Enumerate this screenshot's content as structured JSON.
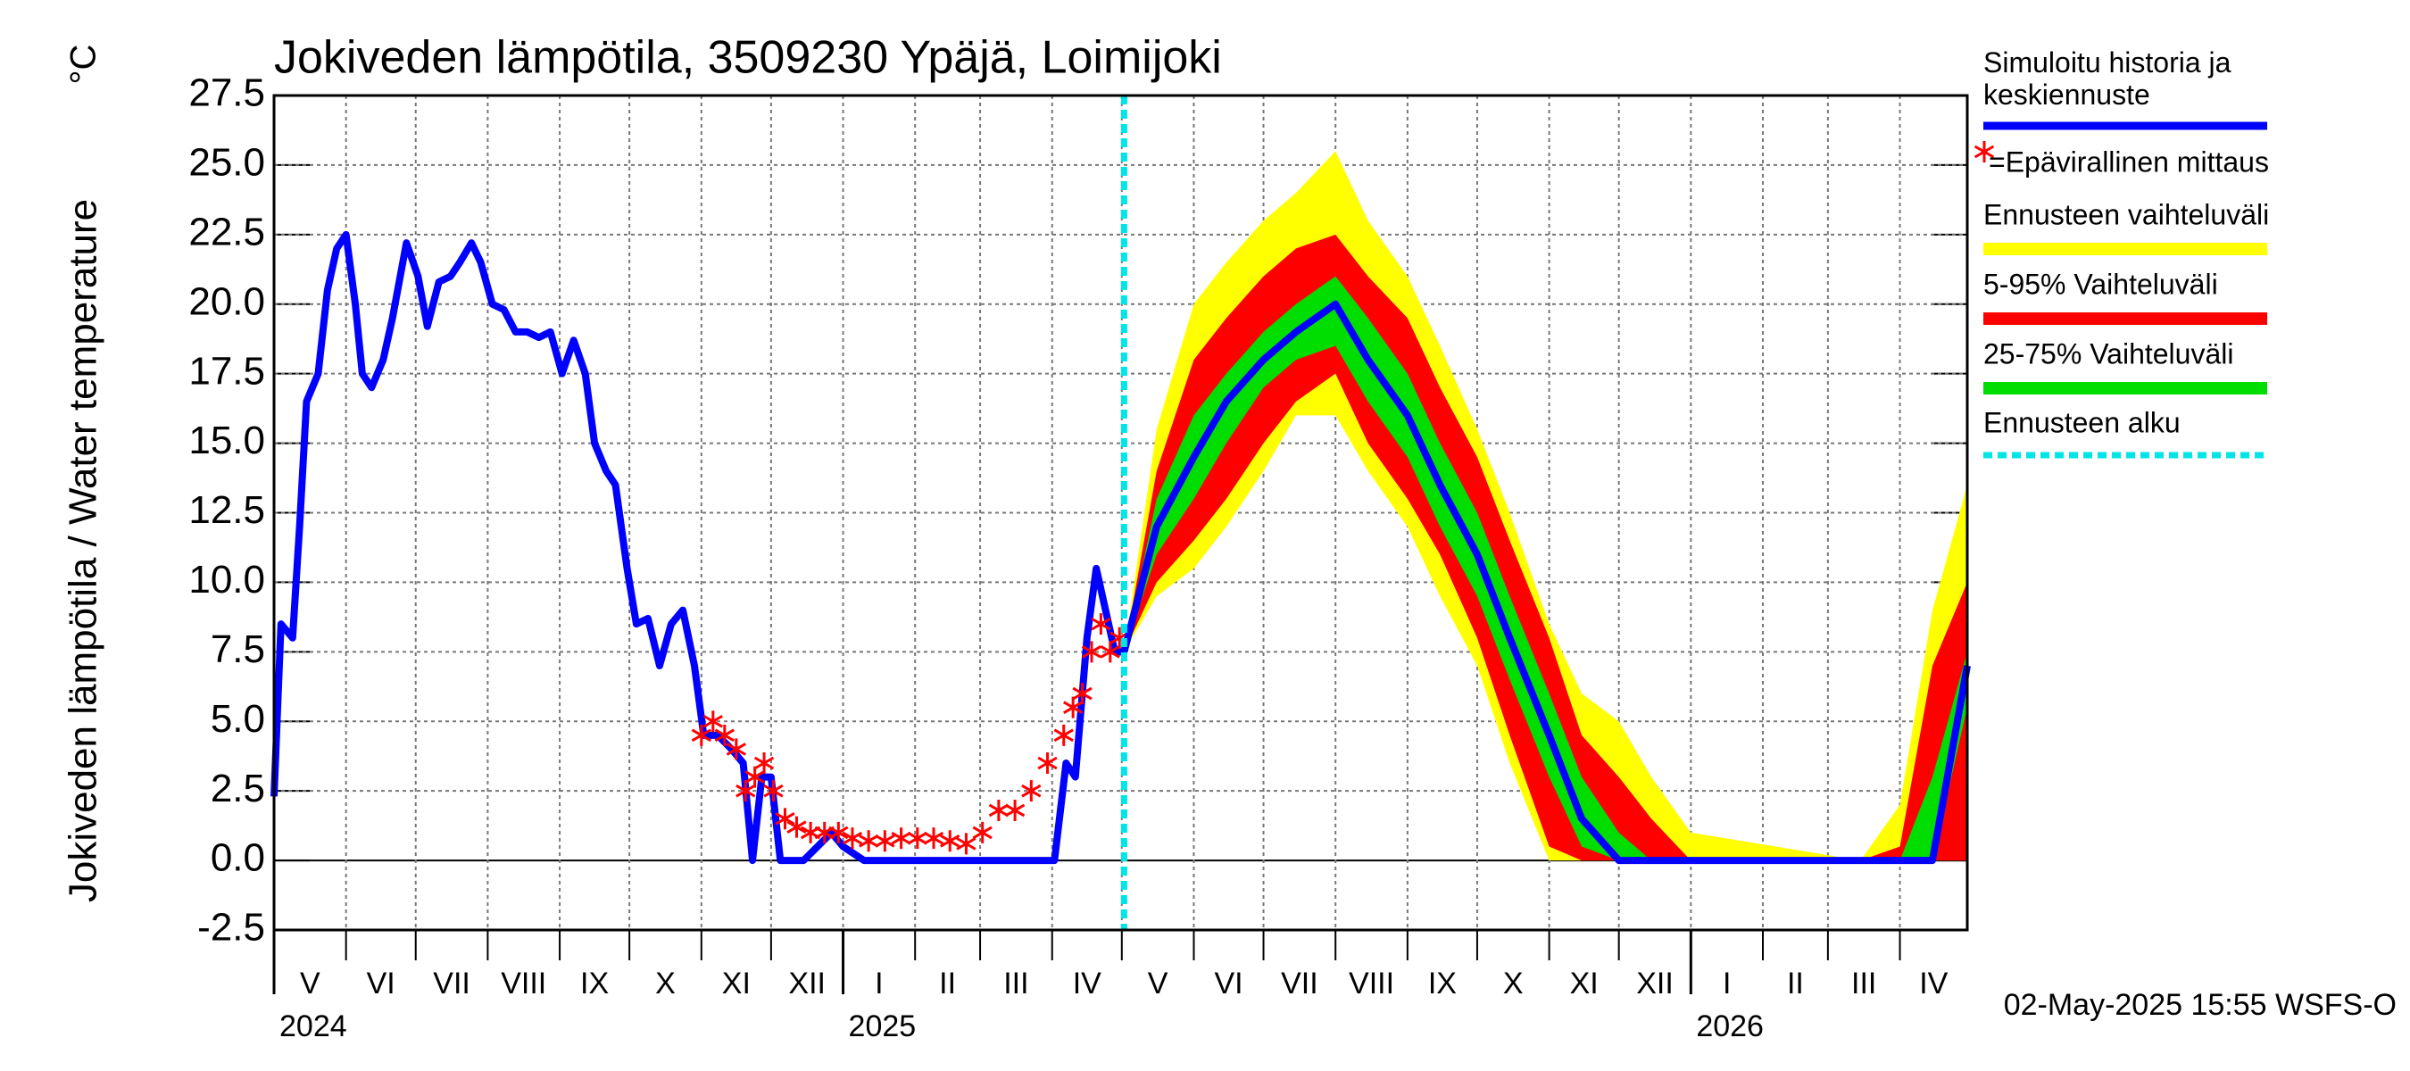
{
  "chart_data": {
    "type": "line",
    "title": "Jokiveden lämpötila, 3509230 Ypäjä, Loimijoki",
    "y_label": "Jokiveden lämpötila / Water temperature",
    "y_unit": "°C",
    "footer": "02-May-2025 15:55 WSFS-O",
    "xlim": [
      "2024-05-01",
      "2026-04-30"
    ],
    "ylim": [
      -2.5,
      27.5
    ],
    "yticks": [
      -2.5,
      {
        "value": 0,
        "label": "0.0"
      },
      2.5,
      {
        "value": 5,
        "label": "5.0"
      },
      7.5,
      {
        "value": 10,
        "label": "10.0"
      },
      12.5,
      {
        "value": 15,
        "label": "15.0"
      },
      17.5,
      {
        "value": 20,
        "label": "20.0"
      },
      22.5,
      {
        "value": 25,
        "label": "25.0"
      },
      27.5
    ],
    "xticks": [
      {
        "value": "2024-05-01",
        "label": "V"
      },
      {
        "value": "2024-06-01",
        "label": "VI"
      },
      {
        "value": "2024-07-01",
        "label": "VII"
      },
      {
        "value": "2024-08-01",
        "label": "VIII"
      },
      {
        "value": "2024-09-01",
        "label": "IX"
      },
      {
        "value": "2024-10-01",
        "label": "X"
      },
      {
        "value": "2024-11-01",
        "label": "XI"
      },
      {
        "value": "2024-12-01",
        "label": "XII"
      },
      {
        "value": "2025-01-01",
        "label": "I"
      },
      {
        "value": "2025-02-01",
        "label": "II"
      },
      {
        "value": "2025-03-01",
        "label": "III"
      },
      {
        "value": "2025-04-01",
        "label": "IV"
      },
      {
        "value": "2025-05-01",
        "label": "V"
      },
      {
        "value": "2025-06-01",
        "label": "VI"
      },
      {
        "value": "2025-07-01",
        "label": "VII"
      },
      {
        "value": "2025-08-01",
        "label": "VIII"
      },
      {
        "value": "2025-09-01",
        "label": "IX"
      },
      {
        "value": "2025-10-01",
        "label": "X"
      },
      {
        "value": "2025-11-01",
        "label": "XI"
      },
      {
        "value": "2025-12-01",
        "label": "XII"
      },
      {
        "value": "2026-01-01",
        "label": "I"
      },
      {
        "value": "2026-02-01",
        "label": "II"
      },
      {
        "value": "2026-03-01",
        "label": "III"
      },
      {
        "value": "2026-04-01",
        "label": "IV"
      }
    ],
    "year_labels": [
      {
        "value": "2024-05-01",
        "label": "2024"
      },
      {
        "value": "2025-01-01",
        "label": "2025"
      },
      {
        "value": "2026-01-01",
        "label": "2026"
      }
    ],
    "grid": true,
    "series": [
      {
        "name": "Simuloitu historia ja keskiennuste",
        "color": "#0000ff",
        "x": [
          "2024-05-01",
          "2024-05-04",
          "2024-05-09",
          "2024-05-12",
          "2024-05-15",
          "2024-05-20",
          "2024-05-24",
          "2024-05-28",
          "2024-06-01",
          "2024-06-05",
          "2024-06-08",
          "2024-06-12",
          "2024-06-17",
          "2024-06-21",
          "2024-06-27",
          "2024-07-02",
          "2024-07-06",
          "2024-07-11",
          "2024-07-16",
          "2024-07-20",
          "2024-07-25",
          "2024-07-29",
          "2024-08-03",
          "2024-08-08",
          "2024-08-13",
          "2024-08-18",
          "2024-08-23",
          "2024-08-28",
          "2024-09-02",
          "2024-09-07",
          "2024-09-12",
          "2024-09-16",
          "2024-09-21",
          "2024-09-25",
          "2024-09-30",
          "2024-10-04",
          "2024-10-09",
          "2024-10-14",
          "2024-10-19",
          "2024-10-24",
          "2024-10-29",
          "2024-11-02",
          "2024-11-08",
          "2024-11-14",
          "2024-11-19",
          "2024-11-23",
          "2024-11-27",
          "2024-12-01",
          "2024-12-05",
          "2024-12-15",
          "2024-12-27",
          "2025-01-01",
          "2025-01-10",
          "2025-04-02",
          "2025-04-07",
          "2025-04-11",
          "2025-04-16",
          "2025-04-20",
          "2025-04-24",
          "2025-04-28",
          "2025-05-02"
        ],
        "values": [
          2.3,
          8.5,
          8,
          12,
          16.5,
          17.5,
          20.5,
          22,
          22.5,
          20,
          17.5,
          17,
          18,
          19.5,
          22.2,
          21,
          19.2,
          20.8,
          21,
          21.5,
          22.2,
          21.5,
          20,
          19.8,
          19,
          19,
          18.8,
          19,
          17.5,
          18.7,
          17.5,
          15,
          14,
          13.5,
          10.5,
          8.5,
          8.7,
          7,
          8.5,
          9,
          7,
          4.5,
          4.5,
          4,
          3.5,
          0,
          3,
          3,
          0,
          0,
          1,
          0.5,
          0,
          0,
          3.5,
          3,
          8,
          10.5,
          9,
          7.5,
          7.5
        ]
      },
      {
        "name": "=Epävirallinen mittaus",
        "color": "#ff0000",
        "x": [
          "2024-11-01",
          "2024-11-06",
          "2024-11-11",
          "2024-11-16",
          "2024-11-20",
          "2024-11-24",
          "2024-11-28",
          "2024-12-02",
          "2024-12-07",
          "2024-12-12",
          "2024-12-18",
          "2024-12-24",
          "2024-12-30",
          "2025-01-05",
          "2025-01-12",
          "2025-01-19",
          "2025-01-26",
          "2025-02-02",
          "2025-02-09",
          "2025-02-16",
          "2025-02-23",
          "2025-03-02",
          "2025-03-09",
          "2025-03-16",
          "2025-03-23",
          "2025-03-30",
          "2025-04-06",
          "2025-04-10",
          "2025-04-14",
          "2025-04-18",
          "2025-04-22",
          "2025-04-26",
          "2025-04-30"
        ],
        "values": [
          4.5,
          5,
          4.5,
          4,
          2.5,
          3,
          3.5,
          2.5,
          1.5,
          1.2,
          1,
          1,
          1,
          0.8,
          0.7,
          0.7,
          0.8,
          0.8,
          0.8,
          0.7,
          0.6,
          1,
          1.8,
          1.8,
          2.5,
          3.5,
          4.5,
          5.5,
          6,
          7.5,
          8.5,
          7.5,
          8
        ]
      },
      {
        "color": "#0000ff",
        "x": [
          "2025-05-02",
          "2025-05-16",
          "2025-06-01",
          "2025-06-15",
          "2025-07-01",
          "2025-07-15",
          "2025-08-01",
          "2025-08-15",
          "2025-09-01",
          "2025-09-15",
          "2025-10-01",
          "2025-10-15",
          "2025-11-01",
          "2025-11-15",
          "2025-12-01",
          "2025-12-15",
          "2026-01-01",
          "2026-03-15",
          "2026-04-01",
          "2026-04-15",
          "2026-04-30"
        ],
        "values": [
          7.5,
          12,
          14.5,
          16.5,
          18,
          19,
          20,
          18,
          16,
          13.5,
          11,
          8,
          4.5,
          1.5,
          0,
          0,
          0,
          0,
          0,
          0,
          7
        ]
      }
    ],
    "forecast_x": [
      "2025-05-02",
      "2025-05-16",
      "2025-06-01",
      "2025-06-15",
      "2025-07-01",
      "2025-07-15",
      "2025-08-01",
      "2025-08-15",
      "2025-09-01",
      "2025-09-15",
      "2025-10-01",
      "2025-10-15",
      "2025-11-01",
      "2025-11-15",
      "2025-12-01",
      "2025-12-15",
      "2026-01-01",
      "2026-03-15",
      "2026-04-01",
      "2026-04-15",
      "2026-04-30"
    ],
    "bands": [
      {
        "name": "Ennusteen vaihteluväli",
        "color": "#ffff00",
        "low": [
          7.5,
          9.5,
          10.5,
          12,
          14,
          16,
          16,
          14,
          12,
          9.5,
          7,
          3.5,
          0,
          0,
          0,
          0,
          0,
          0,
          0,
          0,
          0
        ],
        "high": [
          7.5,
          15.5,
          20,
          21.5,
          23,
          24,
          25.5,
          23,
          21,
          18.5,
          15.5,
          12.5,
          8.5,
          6,
          5,
          3,
          1,
          0,
          2,
          9,
          13.5
        ]
      },
      {
        "name": "5-95% Vaihteluväli",
        "color": "#ff0000",
        "low": [
          7.5,
          10,
          11.5,
          13,
          15,
          16.5,
          17.5,
          15,
          13,
          11,
          8,
          4.5,
          0.5,
          0,
          0,
          0,
          0,
          0,
          0,
          0,
          0
        ],
        "high": [
          7.5,
          14,
          18,
          19.5,
          21,
          22,
          22.5,
          21,
          19.5,
          17,
          14.5,
          11.5,
          8,
          4.5,
          3,
          1.5,
          0,
          0,
          0.5,
          7,
          10
        ]
      },
      {
        "name": "25-75% Vaihteluväli",
        "color": "#00dd00",
        "low": [
          7.5,
          11,
          13,
          15,
          17,
          18,
          18.5,
          16.5,
          14.5,
          12,
          9.5,
          6.5,
          3,
          0.5,
          0,
          0,
          0,
          0,
          0,
          0,
          5.5
        ],
        "high": [
          7.5,
          13,
          16,
          17.5,
          19,
          20,
          21,
          19.5,
          17.5,
          15,
          12.5,
          9.5,
          6,
          3,
          1,
          0,
          0,
          0,
          0,
          3,
          7.5
        ]
      }
    ],
    "forecast_start": {
      "name": "Ennusteen alku",
      "x": "2025-05-02",
      "color": "#00e5e5"
    }
  }
}
